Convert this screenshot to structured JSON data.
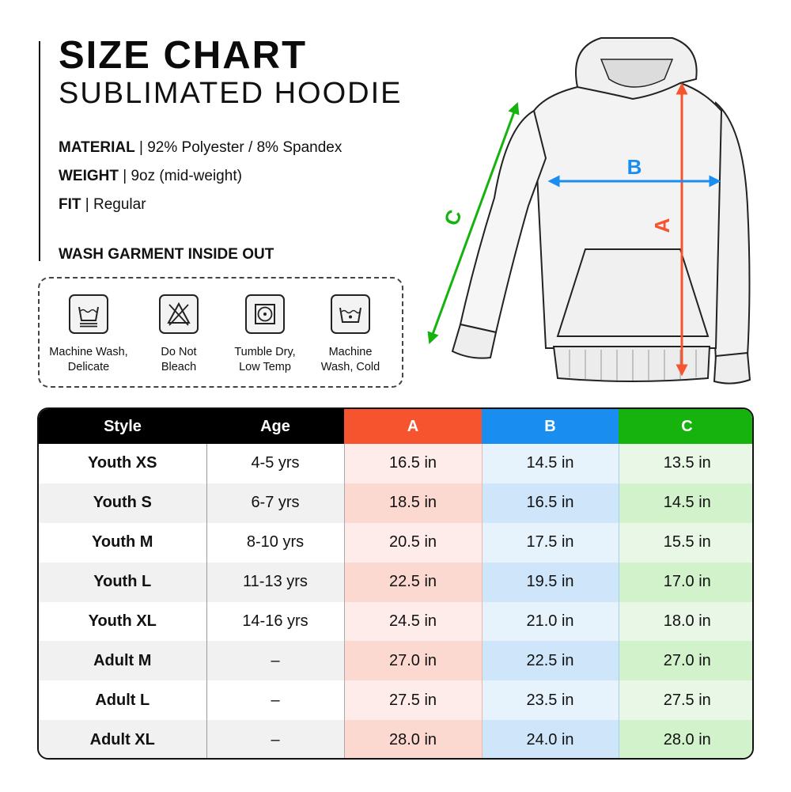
{
  "header": {
    "title": "SIZE CHART",
    "subtitle": "SUBLIMATED HOODIE"
  },
  "specs": [
    {
      "label": "MATERIAL",
      "value": " | 92% Polyester / 8% Spandex"
    },
    {
      "label": "WEIGHT",
      "value": " | 9oz (mid-weight)"
    },
    {
      "label": "FIT",
      "value": " | Regular"
    }
  ],
  "care": {
    "title": "WASH GARMENT INSIDE OUT",
    "items": [
      {
        "icon": "machine-wash-delicate-icon",
        "line1": "Machine Wash,",
        "line2": "Delicate"
      },
      {
        "icon": "do-not-bleach-icon",
        "line1": "Do Not",
        "line2": "Bleach"
      },
      {
        "icon": "tumble-dry-low-icon",
        "line1": "Tumble Dry,",
        "line2": "Low Temp"
      },
      {
        "icon": "machine-wash-cold-icon",
        "line1": "Machine",
        "line2": "Wash, Cold"
      }
    ]
  },
  "diagram": {
    "labels": {
      "a": "A",
      "b": "B",
      "c": "C"
    },
    "colors": {
      "a": "#f6542f",
      "b": "#1a8ef0",
      "c": "#16b30f"
    }
  },
  "table": {
    "headers": {
      "style": "Style",
      "age": "Age",
      "a": "A",
      "b": "B",
      "c": "C"
    },
    "rows": [
      {
        "style": "Youth XS",
        "age": "4-5 yrs",
        "a": "16.5 in",
        "b": "14.5 in",
        "c": "13.5 in"
      },
      {
        "style": "Youth S",
        "age": "6-7 yrs",
        "a": "18.5 in",
        "b": "16.5 in",
        "c": "14.5 in"
      },
      {
        "style": "Youth M",
        "age": "8-10 yrs",
        "a": "20.5 in",
        "b": "17.5 in",
        "c": "15.5 in"
      },
      {
        "style": "Youth L",
        "age": "11-13 yrs",
        "a": "22.5 in",
        "b": "19.5 in",
        "c": "17.0 in"
      },
      {
        "style": "Youth XL",
        "age": "14-16 yrs",
        "a": "24.5 in",
        "b": "21.0 in",
        "c": "18.0 in"
      },
      {
        "style": "Adult M",
        "age": "–",
        "a": "27.0 in",
        "b": "22.5 in",
        "c": "27.0 in"
      },
      {
        "style": "Adult L",
        "age": "–",
        "a": "27.5 in",
        "b": "23.5 in",
        "c": "27.5 in"
      },
      {
        "style": "Adult XL",
        "age": "–",
        "a": "28.0 in",
        "b": "24.0 in",
        "c": "28.0 in"
      }
    ]
  }
}
